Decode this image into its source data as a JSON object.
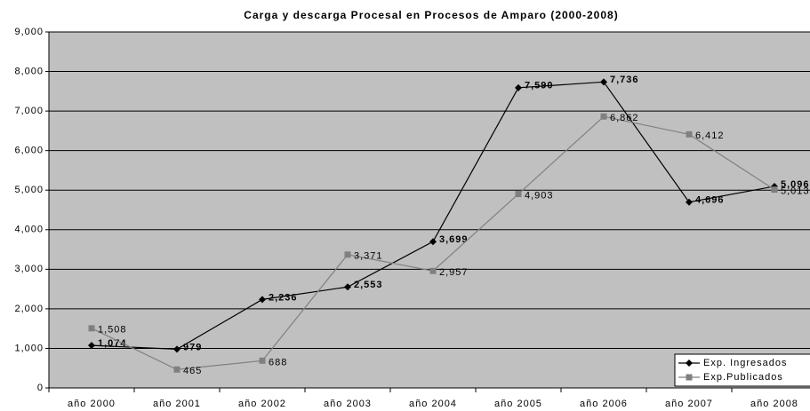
{
  "chart_data": {
    "type": "line",
    "title": "Carga y descarga Procesal en Procesos de Amparo (2000-2008)",
    "categories": [
      "año 2000",
      "año 2001",
      "año 2002",
      "año 2003",
      "año 2004",
      "año 2005",
      "año 2006",
      "año 2007",
      "año 2008"
    ],
    "series": [
      {
        "name": "Exp. Ingresados",
        "color": "#000000",
        "marker": "diamond",
        "label_bold": true,
        "values": [
          1074,
          979,
          2236,
          2553,
          3699,
          7590,
          7736,
          4696,
          5096
        ],
        "value_labels": [
          "1,074",
          "979",
          "2,236",
          "2,553",
          "3,699",
          "7,590",
          "7,736",
          "4,696",
          "5,096"
        ]
      },
      {
        "name": "Exp.Publicados",
        "color": "#808080",
        "marker": "square",
        "label_bold": false,
        "values": [
          1508,
          465,
          688,
          3371,
          2957,
          4903,
          6862,
          6412,
          5013
        ],
        "value_labels": [
          "1,508",
          "465",
          "688",
          "3,371",
          "2,957",
          "4,903",
          "6,862",
          "6,412",
          "5,013"
        ]
      }
    ],
    "ylim": [
      0,
      9000
    ],
    "yticks": [
      0,
      {
        "value": 1000,
        "label": "1,000"
      },
      {
        "value": 2000,
        "label": "2,000"
      },
      {
        "value": 3000,
        "label": "3,000"
      },
      {
        "value": 4000,
        "label": "4,000"
      },
      {
        "value": 5000,
        "label": "5,000"
      },
      {
        "value": 6000,
        "label": "6,000"
      },
      {
        "value": 7000,
        "label": "7,000"
      },
      {
        "value": 8000,
        "label": "8,000"
      },
      {
        "value": 9000,
        "label": "9,000"
      }
    ],
    "grid": true,
    "background": "#c0c0c0",
    "legend": "lower right"
  }
}
